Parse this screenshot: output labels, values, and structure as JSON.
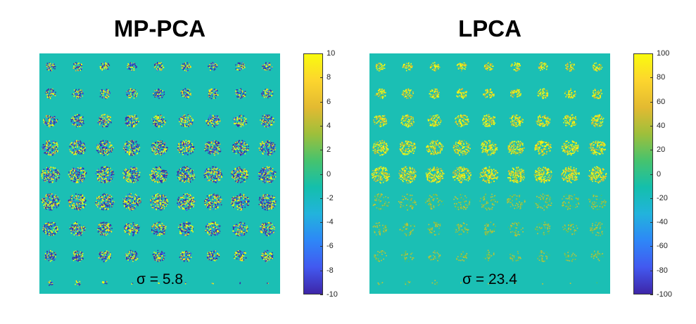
{
  "chart_data": [
    {
      "type": "heatmap",
      "title": "MP-PCA",
      "annotation": "σ = 5.8",
      "grid": {
        "rows": 9,
        "cols": 9
      },
      "colormap": "parula",
      "background_value": 0,
      "colorbar": {
        "min": -10,
        "max": 10,
        "ticks": [
          10,
          8,
          6,
          4,
          2,
          0,
          -2,
          -4,
          -6,
          -8,
          -10
        ]
      }
    },
    {
      "type": "heatmap",
      "title": "LPCA",
      "annotation": "σ = 23.4",
      "grid": {
        "rows": 9,
        "cols": 9
      },
      "colormap": "parula",
      "background_value": 0,
      "colorbar": {
        "min": -100,
        "max": 100,
        "ticks": [
          100,
          80,
          60,
          40,
          20,
          0,
          -20,
          -40,
          -60,
          -80,
          -100
        ]
      }
    }
  ]
}
